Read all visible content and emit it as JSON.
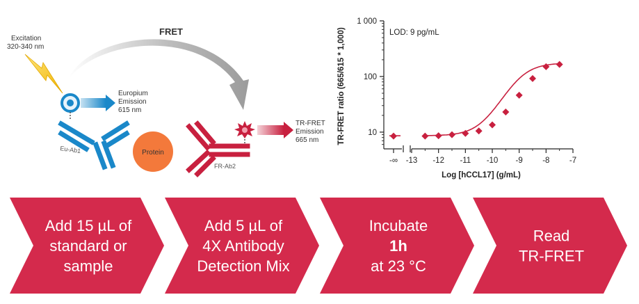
{
  "diagram": {
    "fret_label": "FRET",
    "excitation_label": [
      "Excitation",
      "320-340 nm"
    ],
    "europium_label": [
      "Europium",
      "Emission",
      "615 nm"
    ],
    "trfret_label": [
      "TR-FRET",
      "Emission",
      "665 nm"
    ],
    "eu_ab_label": "Eu-Ab1",
    "fr_ab_label": "FR-Ab2",
    "protein_label": "Protein"
  },
  "chart_data": {
    "type": "scatter",
    "annotation": "LOD: 9 pg/mL",
    "xlabel": "Log [hCCL17] (g/mL)",
    "ylabel": "TR-FRET ratio (665/615 * 1,000)",
    "x_ticks": [
      "-∞",
      "-13",
      "-12",
      "-11",
      "-10",
      "-9",
      "-8",
      "-7"
    ],
    "y_ticks": [
      "10",
      "100",
      "1 000"
    ],
    "xlim": [
      -13,
      -7
    ],
    "ylim_log": [
      5,
      1000
    ],
    "y_scale": "log",
    "axis_break_x": true,
    "points": [
      {
        "x": "-inf",
        "y": 8.5
      },
      {
        "x": -12.5,
        "y": 8.5
      },
      {
        "x": -12.0,
        "y": 8.6
      },
      {
        "x": -11.5,
        "y": 9.0
      },
      {
        "x": -11.0,
        "y": 9.5
      },
      {
        "x": -10.5,
        "y": 10.5
      },
      {
        "x": -10.0,
        "y": 13.5
      },
      {
        "x": -9.5,
        "y": 23
      },
      {
        "x": -9.0,
        "y": 46
      },
      {
        "x": -8.5,
        "y": 92
      },
      {
        "x": -8.0,
        "y": 150
      },
      {
        "x": -7.5,
        "y": 165
      }
    ],
    "fit": {
      "bottom": 8.6,
      "top": 175,
      "log_ec50": -9.0,
      "hill": 1.0
    },
    "color": "#c8203f"
  },
  "steps": [
    {
      "lines": [
        "Add 15 µL of",
        "standard or",
        "sample"
      ],
      "bold": [
        false,
        false,
        false
      ]
    },
    {
      "lines": [
        "Add 5 µL of",
        "4X Antibody",
        "Detection Mix"
      ],
      "bold": [
        false,
        false,
        false
      ]
    },
    {
      "lines": [
        "Incubate",
        "1h",
        "at 23 °C"
      ],
      "bold": [
        false,
        true,
        false
      ]
    },
    {
      "lines": [
        "Read",
        "TR-FRET"
      ],
      "bold": [
        false,
        false
      ]
    }
  ],
  "colors": {
    "step_fill": "#d42a4c",
    "eu_blue": "#1a88c9",
    "fr_red": "#c8203f",
    "protein": "#f3793b",
    "arrow_gray": "#a9a9a9",
    "lightning": "#f4c41c"
  }
}
